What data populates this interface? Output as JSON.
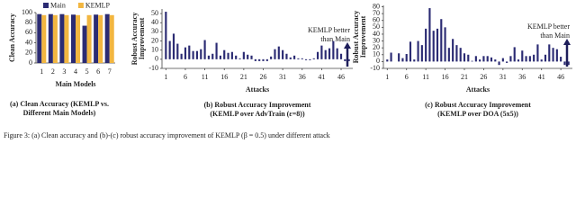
{
  "chart_data": [
    {
      "type": "grouped-bar",
      "title": null,
      "caption": [
        "(a) Clean Accuracy (KEMLP vs.",
        "Different Main Models)"
      ],
      "ylabel": "Clean Accuracy",
      "xlabel": "Main Models",
      "categories": [
        "1",
        "2",
        "3",
        "4",
        "5",
        "6",
        "7"
      ],
      "series": [
        {
          "name": "Main",
          "color": "#2b2b73",
          "values": [
            97,
            97,
            97,
            96,
            74,
            96,
            97
          ]
        },
        {
          "name": "KEMLP",
          "color": "#f2b640",
          "values": [
            95,
            95,
            95,
            95,
            95,
            95,
            95
          ]
        }
      ],
      "ylim": [
        0,
        100
      ],
      "yticks": [
        0,
        20,
        40,
        60,
        80,
        100
      ]
    },
    {
      "type": "bar",
      "caption": [
        "(b) Robust Accuracy Improvement",
        "(KEMLP over AdvTrain (ε=8))"
      ],
      "ylabel": [
        "Robust Accuracy",
        "Improvement"
      ],
      "xlabel": "Attacks",
      "annotation": [
        "KEMLP better",
        "than Main"
      ],
      "x": [
        1,
        2,
        3,
        4,
        5,
        6,
        7,
        8,
        9,
        10,
        11,
        12,
        13,
        14,
        15,
        16,
        17,
        18,
        19,
        20,
        21,
        22,
        23,
        24,
        25,
        26,
        27,
        28,
        29,
        30,
        31,
        32,
        33,
        34,
        35,
        36,
        37,
        38,
        39,
        40,
        41,
        42,
        43,
        44,
        45,
        46,
        47,
        48
      ],
      "values": [
        52,
        20,
        28,
        17,
        6,
        13,
        15,
        9,
        9,
        11,
        21,
        4,
        6,
        18,
        4,
        10,
        7,
        8,
        4,
        1,
        8,
        5,
        4,
        -2,
        -2,
        -2,
        -2,
        3,
        11,
        14,
        10,
        6,
        2,
        4,
        1,
        1,
        -1,
        -1,
        1,
        8,
        15,
        10,
        12,
        20,
        12,
        6,
        -2,
        -2
      ],
      "color": "#2b2b73",
      "xlim": [
        0,
        49
      ],
      "xticks": [
        1,
        6,
        11,
        16,
        21,
        26,
        31,
        36,
        41,
        46
      ],
      "ylim": [
        -10,
        55
      ],
      "yticks": [
        -10,
        0,
        10,
        20,
        30,
        40,
        50
      ]
    },
    {
      "type": "bar",
      "caption": [
        "(c) Robust Accuracy Improvement",
        "(KEMLP over DOA (5x5))"
      ],
      "ylabel": [
        "Robust Accuracy",
        "Improvement"
      ],
      "xlabel": "Attacks",
      "annotation": [
        "KEMLP better",
        "than Main"
      ],
      "x": [
        1,
        2,
        3,
        4,
        5,
        6,
        7,
        8,
        9,
        10,
        11,
        12,
        13,
        14,
        15,
        16,
        17,
        18,
        19,
        20,
        21,
        22,
        23,
        24,
        25,
        26,
        27,
        28,
        29,
        30,
        31,
        32,
        33,
        34,
        35,
        36,
        37,
        38,
        39,
        40,
        41,
        42,
        43,
        44,
        45,
        46,
        47,
        48
      ],
      "values": [
        3,
        13,
        0,
        12,
        5,
        11,
        29,
        3,
        30,
        24,
        48,
        78,
        45,
        48,
        62,
        50,
        20,
        33,
        24,
        20,
        12,
        10,
        1,
        8,
        3,
        8,
        8,
        6,
        3,
        -5,
        5,
        -2,
        8,
        21,
        3,
        16,
        8,
        8,
        10,
        25,
        3,
        10,
        25,
        20,
        18,
        7,
        -5,
        -5
      ],
      "color": "#2b2b73",
      "xlim": [
        0,
        49
      ],
      "xticks": [
        1,
        6,
        11,
        16,
        21,
        26,
        31,
        36,
        41,
        46
      ],
      "ylim": [
        -10,
        82
      ],
      "yticks": [
        -10,
        0,
        10,
        20,
        30,
        40,
        50,
        60,
        70,
        80
      ]
    }
  ],
  "figure_caption": "Figure 3: (a) Clean accuracy and (b)-(c) robust accuracy improvement of KEMLP (β = 0.5) under different attack"
}
